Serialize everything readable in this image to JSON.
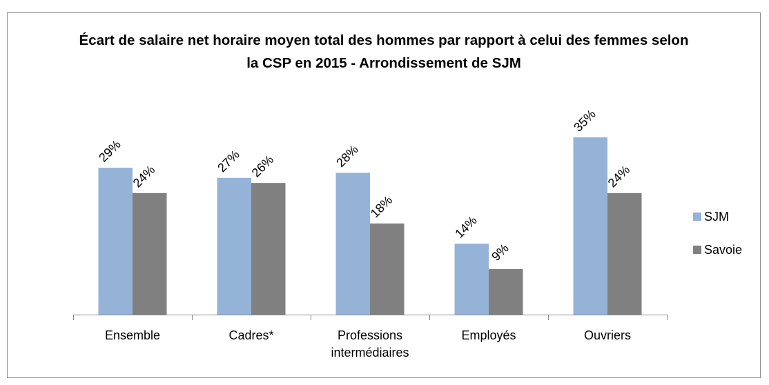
{
  "chart_data": {
    "type": "bar",
    "title": "Écart de salaire net horaire moyen total des hommes par rapport à celui des femmes selon la CSP en 2015 - Arrondissement de SJM",
    "categories": [
      "Ensemble",
      "Cadres*",
      "Professions intermédiaires",
      "Employés",
      "Ouvriers"
    ],
    "series": [
      {
        "name": "SJM",
        "color": "#95b3d7",
        "values": [
          29,
          27,
          28,
          14,
          35
        ],
        "value_labels": [
          "29%",
          "27%",
          "28%",
          "14%",
          "35%"
        ]
      },
      {
        "name": "Savoie",
        "color": "#808080",
        "values": [
          24,
          26,
          18,
          9,
          24
        ],
        "value_labels": [
          "24%",
          "26%",
          "18%",
          "9%",
          "24%"
        ]
      }
    ],
    "legend": "right"
  }
}
